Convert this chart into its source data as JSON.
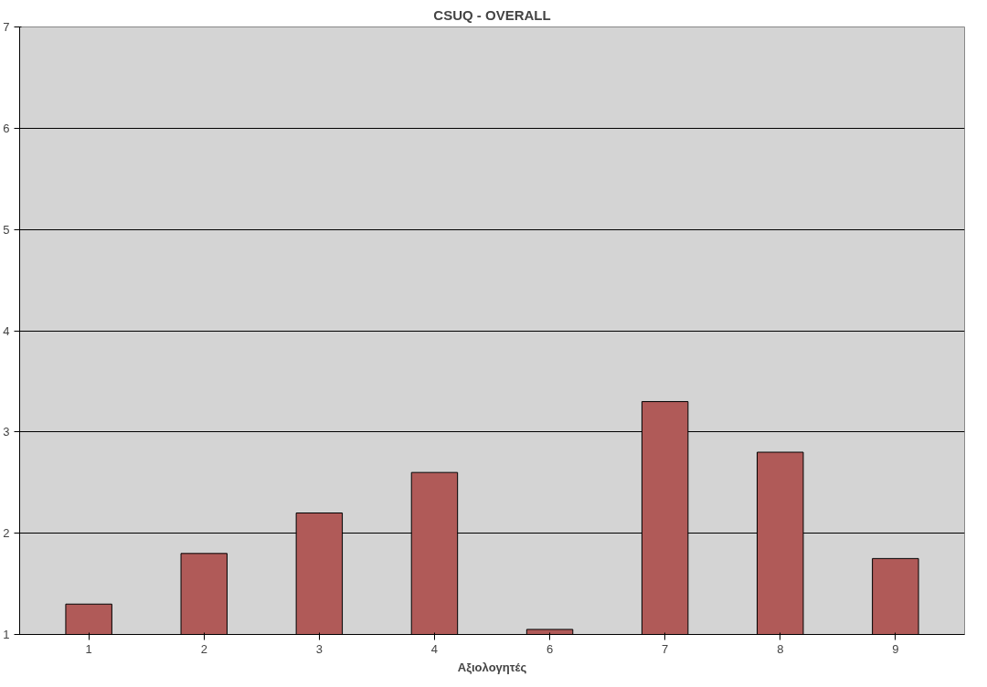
{
  "chart_data": {
    "type": "bar",
    "title": "CSUQ - OVERALL",
    "xlabel": "Αξιολογητές",
    "categories": [
      "1",
      "2",
      "3",
      "4",
      "6",
      "7",
      "8",
      "9"
    ],
    "values": [
      1.3,
      1.8,
      2.2,
      2.6,
      1.05,
      3.3,
      2.8,
      1.75
    ],
    "color": "#b05a58",
    "ylim": [
      1,
      7
    ],
    "yticks": [
      1,
      2,
      3,
      4,
      5,
      6,
      7
    ],
    "grid": "y"
  }
}
